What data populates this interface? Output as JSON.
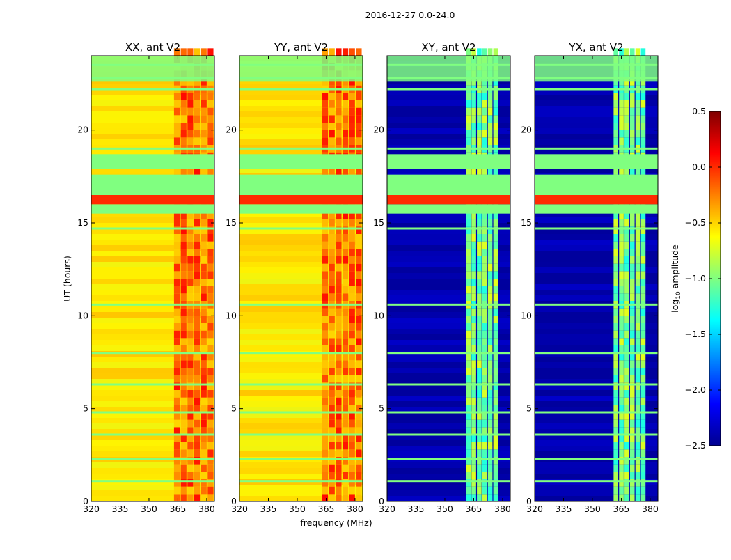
{
  "figure": {
    "suptitle": "2016-12-27 0.0-24.0",
    "xlabel": "frequency (MHz)",
    "ylabel": "UT (hours)"
  },
  "colorbar": {
    "label_main": "log",
    "label_sub": "10",
    "label_rest": " amplitude",
    "range": [
      -2.5,
      0.5
    ],
    "ticks": [
      "0.5",
      "0.0",
      "−0.5",
      "−1.0",
      "−1.5",
      "−2.0",
      "−2.5"
    ],
    "tick_values": [
      0.5,
      0.0,
      -0.5,
      -1.0,
      -1.5,
      -2.0,
      -2.5
    ],
    "colors": [
      "#00008f",
      "#0000ff",
      "#0080ff",
      "#00ffff",
      "#80ff80",
      "#ffff00",
      "#ff8000",
      "#ff0000",
      "#800000"
    ]
  },
  "chart_data": [
    {
      "type": "heatmap",
      "title": "XX, ant V2",
      "xlim": [
        320,
        384
      ],
      "ylim": [
        0,
        24
      ],
      "xticks": [
        320,
        335,
        350,
        365,
        380
      ],
      "yticks": [
        0,
        5,
        10,
        15,
        20
      ],
      "background_level": -0.55,
      "band_level": -0.2,
      "band_range_mhz": [
        363,
        384
      ]
    },
    {
      "type": "heatmap",
      "title": "YY, ant V2",
      "xlim": [
        320,
        384
      ],
      "ylim": [
        0,
        24
      ],
      "xticks": [
        320,
        335,
        350,
        365,
        380
      ],
      "yticks": [
        0,
        5,
        10,
        15,
        20
      ],
      "background_level": -0.55,
      "band_level": -0.2,
      "band_range_mhz": [
        363,
        384
      ]
    },
    {
      "type": "heatmap",
      "title": "XY, ant V2",
      "xlim": [
        320,
        384
      ],
      "ylim": [
        0,
        24
      ],
      "xticks": [
        320,
        335,
        350,
        365,
        380
      ],
      "yticks": [
        0,
        5,
        10,
        15,
        20
      ],
      "background_level": -2.4,
      "band_level": -1.0,
      "band_range_mhz": [
        361,
        378
      ]
    },
    {
      "type": "heatmap",
      "title": "YX, ant V2",
      "xlim": [
        320,
        384
      ],
      "ylim": [
        0,
        24
      ],
      "xticks": [
        320,
        335,
        350,
        365,
        380
      ],
      "yticks": [
        0,
        5,
        10,
        15,
        20
      ],
      "background_level": -2.4,
      "band_level": -1.0,
      "band_range_mhz": [
        361,
        378
      ]
    }
  ],
  "flagged_bands_hours": [
    [
      15.5,
      16.0
    ],
    [
      16.5,
      17.6
    ],
    [
      17.9,
      18.7
    ]
  ],
  "flagged_line_hours": [
    23.5,
    22.8,
    22.2,
    19.0,
    14.7,
    10.6,
    8.0,
    6.3,
    4.8,
    3.6,
    2.3,
    1.1
  ]
}
